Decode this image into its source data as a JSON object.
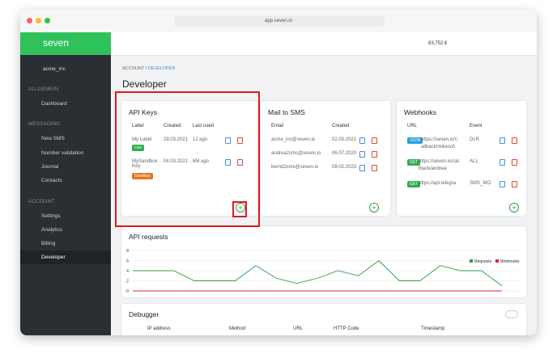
{
  "browser": {
    "url": "app.seven.io"
  },
  "sidebar": {
    "logo": "seven",
    "account": "acme_inc",
    "sections": [
      {
        "title": "ALLGEMEIN",
        "items": [
          "Dashboard"
        ]
      },
      {
        "title": "MESSAGING",
        "items": [
          "New SMS",
          "Number validation",
          "Journal",
          "Contacts"
        ]
      },
      {
        "title": "ACCOUNT",
        "items": [
          "Settings",
          "Analytics",
          "Billing",
          "Developer"
        ]
      }
    ]
  },
  "topbar": {
    "balance": "83,752 €"
  },
  "breadcrumb": [
    "ACCOUNT",
    "/",
    "DEVELOPER"
  ],
  "page_title": "Developer",
  "api_keys": {
    "title": "API Keys",
    "columns": [
      "Label",
      "Created",
      "Last used"
    ],
    "rows": [
      {
        "label": "My Label",
        "badge": "Live",
        "created": "29.03.2021",
        "last_used": "1J ago"
      },
      {
        "label": "MySandboxKey",
        "badge": "Sandbox",
        "created": "04.03.2021",
        "last_used": "6M ago"
      }
    ]
  },
  "mail_to_sms": {
    "title": "Mail to SMS",
    "columns": [
      "Email",
      "Created"
    ],
    "rows": [
      [
        "acme_inc@seven.io",
        "02.03.2021"
      ],
      [
        "andrea2sms@seven.io",
        "06.07.2020"
      ],
      [
        "bernd2sms@seven.io",
        "09.02.2023"
      ]
    ]
  },
  "webhooks": {
    "title": "Webhooks",
    "columns": [
      "URL",
      "Event"
    ],
    "rows": [
      {
        "method": "JSON",
        "url": "https://seven.io/callback/mikesch",
        "event": "DLR"
      },
      {
        "method": "GET",
        "url": "https://seven.io/callback/andrea",
        "event": "ALL"
      },
      {
        "method": "GET",
        "url": "https://api.telegra",
        "event": "SMS_MO"
      }
    ]
  },
  "api_requests": {
    "title": "API requests",
    "type": "line",
    "ylim": [
      0,
      8
    ],
    "yticks": [
      0,
      2,
      4,
      6,
      8
    ],
    "grid": true,
    "series": [
      {
        "name": "Requests",
        "color": "#2e9e3e",
        "values": [
          4,
          4,
          4,
          2,
          2,
          2,
          5,
          2.5,
          1.5,
          2.5,
          4,
          3,
          6,
          2,
          2,
          5,
          4,
          4,
          1
        ]
      },
      {
        "name": "Webhooks",
        "color": "#d9282f",
        "values": [
          0,
          0,
          0,
          0,
          0,
          0,
          0,
          0,
          0,
          0,
          0,
          0,
          0,
          0,
          0,
          0,
          0,
          0,
          0
        ]
      }
    ]
  },
  "debugger": {
    "title": "Debugger",
    "columns": [
      "IP address",
      "Method",
      "URL",
      "HTTP Code",
      "Timestamp"
    ]
  }
}
